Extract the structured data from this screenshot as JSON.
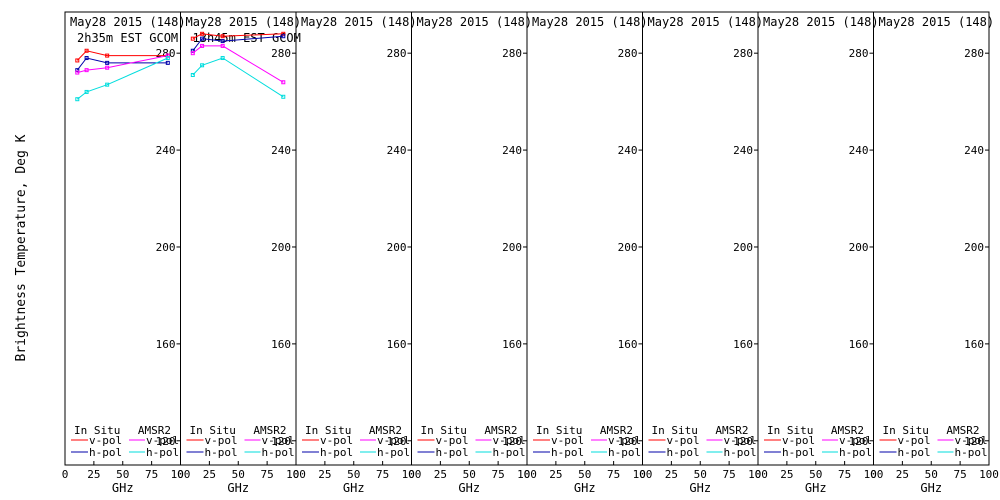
{
  "figure": {
    "ylabel": "Brightness Temperature, Deg K",
    "xlabel": "GHz",
    "ytick_labels": [
      "120",
      "160",
      "200",
      "240",
      "280"
    ],
    "xtick_labels": [
      "0",
      "25",
      "50",
      "75",
      "100"
    ],
    "legend": {
      "insitu_header": "In Situ",
      "amsr2_header": "AMSR2",
      "vpol": "v-pol",
      "hpol": "h-pol"
    },
    "colors": {
      "insitu_v": "#ff0000",
      "insitu_h": "#0000aa",
      "amsr2_v": "#ff00ff",
      "amsr2_h": "#00dddd",
      "axes": "#000000"
    }
  },
  "chart_data": [
    {
      "type": "line",
      "title": "May28 2015 (148)",
      "subtitle": "2h35m EST GCOM",
      "xlim": [
        0,
        100
      ],
      "ylim": [
        110,
        297
      ],
      "series": [
        {
          "name": "In Situ v-pol",
          "key": "insitu_v",
          "x": [
            10.65,
            18.7,
            36.5,
            89
          ],
          "y": [
            277,
            281,
            279,
            279
          ]
        },
        {
          "name": "In Situ h-pol",
          "key": "insitu_h",
          "x": [
            10.65,
            18.7,
            36.5,
            89
          ],
          "y": [
            273,
            278,
            276,
            276
          ]
        },
        {
          "name": "AMSR2 v-pol",
          "key": "amsr2_v",
          "x": [
            10.65,
            18.7,
            36.5,
            89
          ],
          "y": [
            272,
            273,
            274,
            279
          ]
        },
        {
          "name": "AMSR2 h-pol",
          "key": "amsr2_h",
          "x": [
            10.65,
            18.7,
            36.5,
            89
          ],
          "y": [
            261,
            264,
            267,
            278
          ]
        }
      ]
    },
    {
      "type": "line",
      "title": "May28 2015 (148)",
      "subtitle": "13h45m EST GCOM",
      "xlim": [
        0,
        100
      ],
      "ylim": [
        110,
        297
      ],
      "series": [
        {
          "name": "In Situ v-pol",
          "key": "insitu_v",
          "x": [
            10.65,
            18.7,
            36.5,
            89
          ],
          "y": [
            286,
            288,
            287,
            288
          ]
        },
        {
          "name": "In Situ h-pol",
          "key": "insitu_h",
          "x": [
            10.65,
            18.7,
            36.5,
            89
          ],
          "y": [
            281,
            286,
            285,
            287
          ]
        },
        {
          "name": "AMSR2 v-pol",
          "key": "amsr2_v",
          "x": [
            10.65,
            18.7,
            36.5,
            89
          ],
          "y": [
            280,
            283,
            283,
            268
          ]
        },
        {
          "name": "AMSR2 h-pol",
          "key": "amsr2_h",
          "x": [
            10.65,
            18.7,
            36.5,
            89
          ],
          "y": [
            271,
            275,
            278,
            262
          ]
        }
      ]
    },
    {
      "type": "line",
      "title": "May28 2015 (148)",
      "subtitle": "",
      "xlim": [
        0,
        100
      ],
      "ylim": [
        110,
        297
      ],
      "series": []
    },
    {
      "type": "line",
      "title": "May28 2015 (148)",
      "subtitle": "",
      "xlim": [
        0,
        100
      ],
      "ylim": [
        110,
        297
      ],
      "series": []
    },
    {
      "type": "line",
      "title": "May28 2015 (148)",
      "subtitle": "",
      "xlim": [
        0,
        100
      ],
      "ylim": [
        110,
        297
      ],
      "series": []
    },
    {
      "type": "line",
      "title": "May28 2015 (148)",
      "subtitle": "",
      "xlim": [
        0,
        100
      ],
      "ylim": [
        110,
        297
      ],
      "series": []
    },
    {
      "type": "line",
      "title": "May28 2015 (148)",
      "subtitle": "",
      "xlim": [
        0,
        100
      ],
      "ylim": [
        110,
        297
      ],
      "series": []
    },
    {
      "type": "line",
      "title": "May28 2015 (148)",
      "subtitle": "",
      "xlim": [
        0,
        100
      ],
      "ylim": [
        110,
        297
      ],
      "series": []
    }
  ]
}
